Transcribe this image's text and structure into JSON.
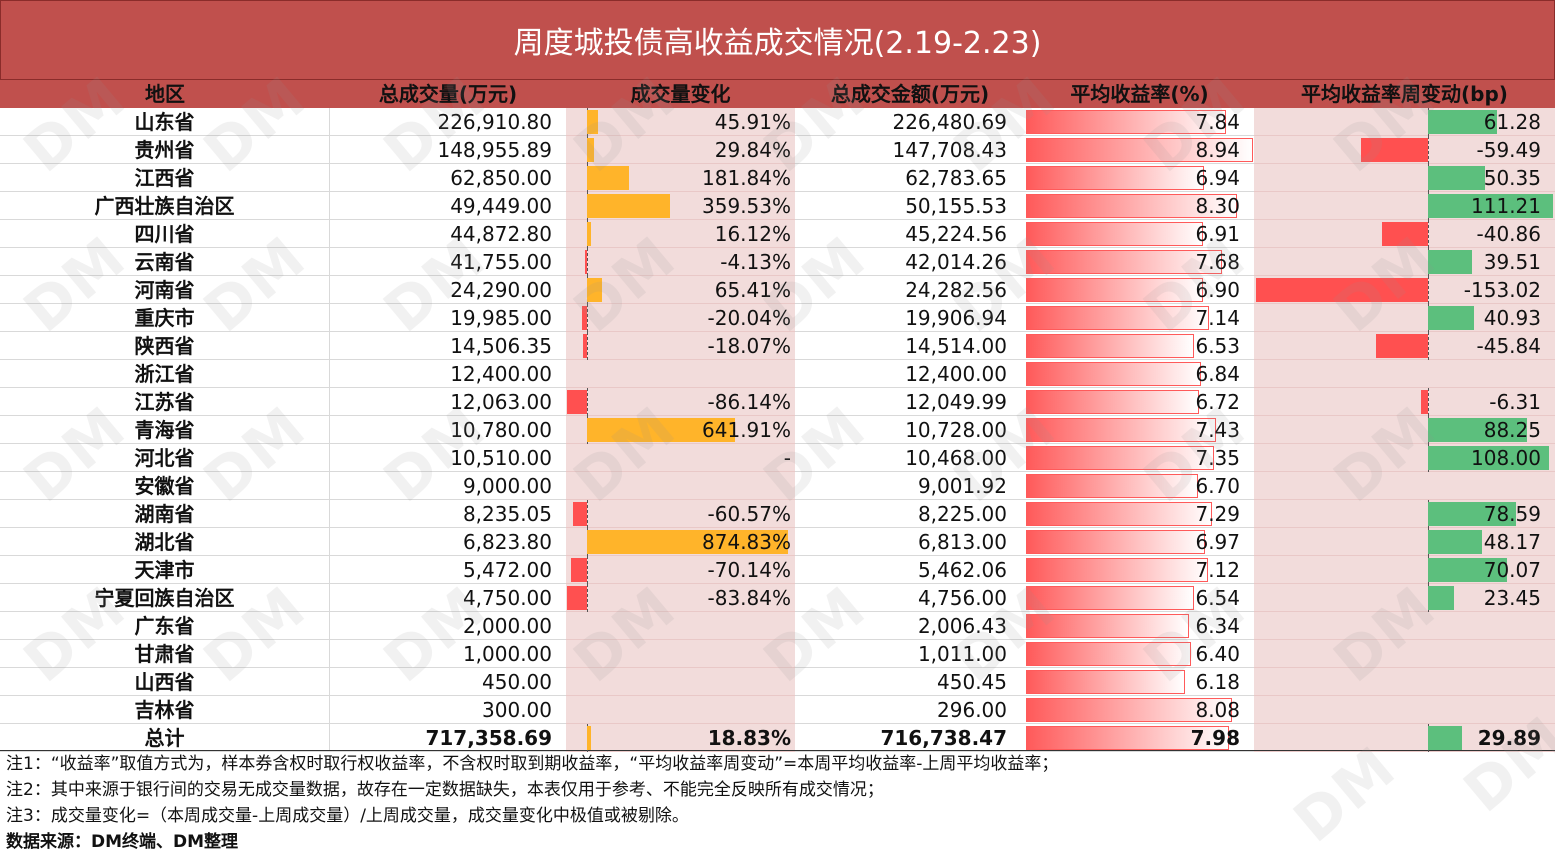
{
  "title": "周度城投债高收益成交情况(2.19-2.23)",
  "headers": {
    "region": "地区",
    "volume": "总成交量(万元)",
    "change": "成交量变化",
    "amount": "总成交金额(万元)",
    "yield": "平均收益率(%)",
    "bp_change": "平均收益率周变动(bp)"
  },
  "colors": {
    "title_bg": "#c0504d",
    "pos_change": "#ffb42a",
    "neg": "#ff5050",
    "pos_bp": "#5cbf7d",
    "yield_bar": "#ff5a5a"
  },
  "rows": [
    {
      "region": "山东省",
      "volume": "226,910.80",
      "change": "45.91%",
      "change_val": 45.91,
      "amount": "226,480.69",
      "yield": "7.84",
      "yield_val": 7.84,
      "bp": "61.28",
      "bp_val": 61.28
    },
    {
      "region": "贵州省",
      "volume": "148,955.89",
      "change": "29.84%",
      "change_val": 29.84,
      "amount": "147,708.43",
      "yield": "8.94",
      "yield_val": 8.94,
      "bp": "-59.49",
      "bp_val": -59.49
    },
    {
      "region": "江西省",
      "volume": "62,850.00",
      "change": "181.84%",
      "change_val": 181.84,
      "amount": "62,783.65",
      "yield": "6.94",
      "yield_val": 6.94,
      "bp": "50.35",
      "bp_val": 50.35
    },
    {
      "region": "广西壮族自治区",
      "volume": "49,449.00",
      "change": "359.53%",
      "change_val": 359.53,
      "amount": "50,155.53",
      "yield": "8.30",
      "yield_val": 8.3,
      "bp": "111.21",
      "bp_val": 111.21
    },
    {
      "region": "四川省",
      "volume": "44,872.80",
      "change": "16.12%",
      "change_val": 16.12,
      "amount": "45,224.56",
      "yield": "6.91",
      "yield_val": 6.91,
      "bp": "-40.86",
      "bp_val": -40.86
    },
    {
      "region": "云南省",
      "volume": "41,755.00",
      "change": "-4.13%",
      "change_val": -4.13,
      "amount": "42,014.26",
      "yield": "7.68",
      "yield_val": 7.68,
      "bp": "39.51",
      "bp_val": 39.51
    },
    {
      "region": "河南省",
      "volume": "24,290.00",
      "change": "65.41%",
      "change_val": 65.41,
      "amount": "24,282.56",
      "yield": "6.90",
      "yield_val": 6.9,
      "bp": "-153.02",
      "bp_val": -153.02
    },
    {
      "region": "重庆市",
      "volume": "19,985.00",
      "change": "-20.04%",
      "change_val": -20.04,
      "amount": "19,906.94",
      "yield": "7.14",
      "yield_val": 7.14,
      "bp": "40.93",
      "bp_val": 40.93
    },
    {
      "region": "陕西省",
      "volume": "14,506.35",
      "change": "-18.07%",
      "change_val": -18.07,
      "amount": "14,514.00",
      "yield": "6.53",
      "yield_val": 6.53,
      "bp": "-45.84",
      "bp_val": -45.84
    },
    {
      "region": "浙江省",
      "volume": "12,400.00",
      "change": "",
      "change_val": null,
      "amount": "12,400.00",
      "yield": "6.84",
      "yield_val": 6.84,
      "bp": "",
      "bp_val": null
    },
    {
      "region": "江苏省",
      "volume": "12,063.00",
      "change": "-86.14%",
      "change_val": -86.14,
      "amount": "12,049.99",
      "yield": "6.72",
      "yield_val": 6.72,
      "bp": "-6.31",
      "bp_val": -6.31
    },
    {
      "region": "青海省",
      "volume": "10,780.00",
      "change": "641.91%",
      "change_val": 641.91,
      "amount": "10,728.00",
      "yield": "7.43",
      "yield_val": 7.43,
      "bp": "88.25",
      "bp_val": 88.25
    },
    {
      "region": "河北省",
      "volume": "10,510.00",
      "change": "-",
      "change_val": null,
      "amount": "10,468.00",
      "yield": "7.35",
      "yield_val": 7.35,
      "bp": "108.00",
      "bp_val": 108.0
    },
    {
      "region": "安徽省",
      "volume": "9,000.00",
      "change": "",
      "change_val": null,
      "amount": "9,001.92",
      "yield": "6.70",
      "yield_val": 6.7,
      "bp": "",
      "bp_val": null
    },
    {
      "region": "湖南省",
      "volume": "8,235.05",
      "change": "-60.57%",
      "change_val": -60.57,
      "amount": "8,225.00",
      "yield": "7.29",
      "yield_val": 7.29,
      "bp": "78.59",
      "bp_val": 78.59
    },
    {
      "region": "湖北省",
      "volume": "6,823.80",
      "change": "874.83%",
      "change_val": 874.83,
      "amount": "6,813.00",
      "yield": "6.97",
      "yield_val": 6.97,
      "bp": "48.17",
      "bp_val": 48.17
    },
    {
      "region": "天津市",
      "volume": "5,472.00",
      "change": "-70.14%",
      "change_val": -70.14,
      "amount": "5,462.06",
      "yield": "7.12",
      "yield_val": 7.12,
      "bp": "70.07",
      "bp_val": 70.07
    },
    {
      "region": "宁夏回族自治区",
      "volume": "4,750.00",
      "change": "-83.84%",
      "change_val": -83.84,
      "amount": "4,756.00",
      "yield": "6.54",
      "yield_val": 6.54,
      "bp": "23.45",
      "bp_val": 23.45
    },
    {
      "region": "广东省",
      "volume": "2,000.00",
      "change": "",
      "change_val": null,
      "amount": "2,006.43",
      "yield": "6.34",
      "yield_val": 6.34,
      "bp": "",
      "bp_val": null
    },
    {
      "region": "甘肃省",
      "volume": "1,000.00",
      "change": "",
      "change_val": null,
      "amount": "1,011.00",
      "yield": "6.40",
      "yield_val": 6.4,
      "bp": "",
      "bp_val": null
    },
    {
      "region": "山西省",
      "volume": "450.00",
      "change": "",
      "change_val": null,
      "amount": "450.45",
      "yield": "6.18",
      "yield_val": 6.18,
      "bp": "",
      "bp_val": null
    },
    {
      "region": "吉林省",
      "volume": "300.00",
      "change": "",
      "change_val": null,
      "amount": "296.00",
      "yield": "8.08",
      "yield_val": 8.08,
      "bp": "",
      "bp_val": null
    },
    {
      "region": "总计",
      "volume": "717,358.69",
      "change": "18.83%",
      "change_val": 18.83,
      "amount": "716,738.47",
      "yield": "7.98",
      "yield_val": 7.98,
      "bp": "29.89",
      "bp_val": 29.89,
      "is_total": true
    }
  ],
  "notes": [
    "注1：“收益率”取值方式为，样本券含权时取行权收益率，不含权时取到期收益率，“平均收益率周变动”=本周平均收益率-上周平均收益率；",
    "注2：其中来源于银行间的交易无成交量数据，故存在一定数据缺失，本表仅用于参考、不能完全反映所有成交情况；",
    "注3：成交量变化=（本周成交量-上周成交量）/上周成交量，成交量变化中极值或被剔除。",
    "数据来源：DM终端、DM整理"
  ],
  "watermark": "DM"
}
